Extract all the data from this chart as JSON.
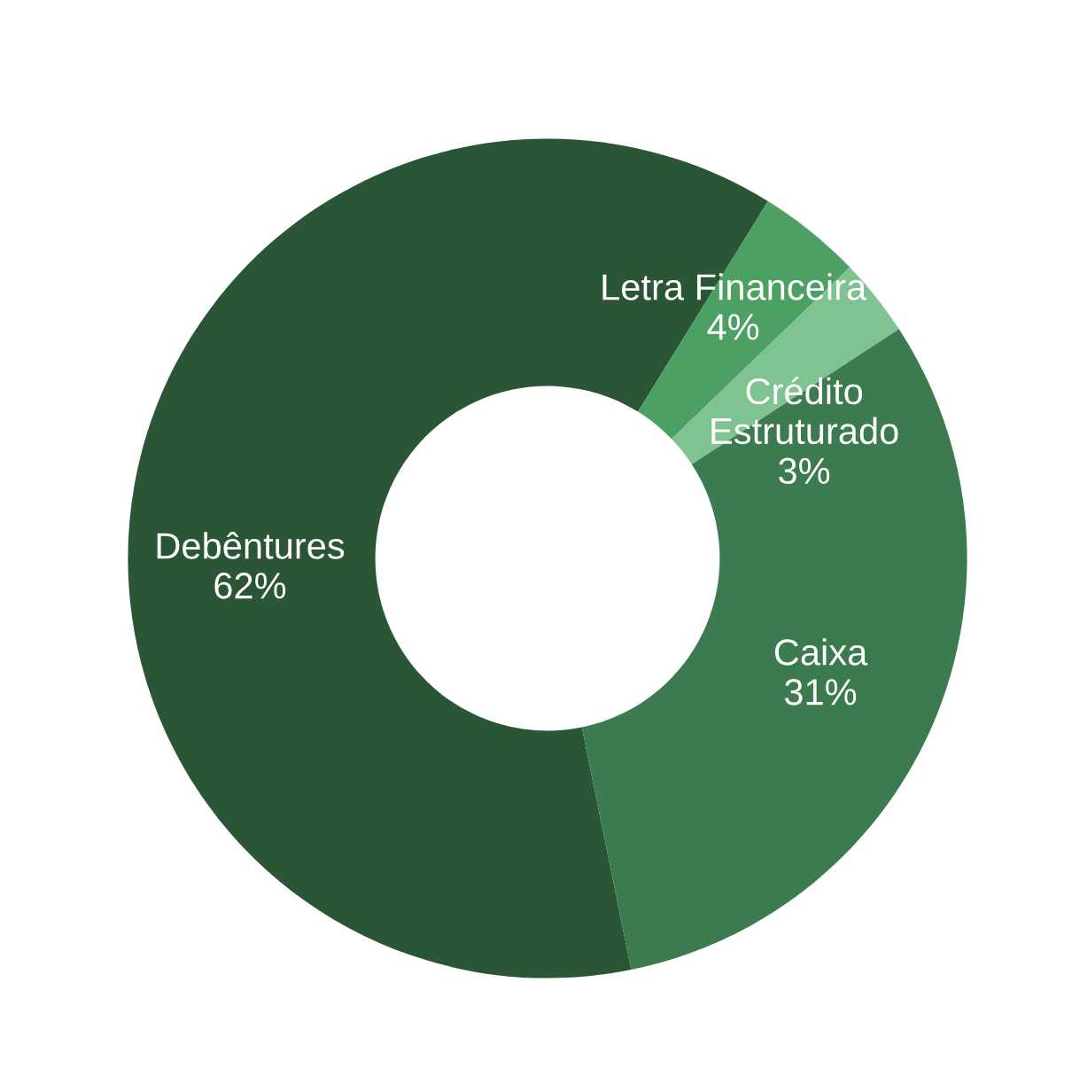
{
  "chart_data": {
    "type": "donut",
    "categories": [
      "Debêntures",
      "Letra Financeira",
      "Crédito\nEstruturado",
      "Caixa"
    ],
    "values": [
      62,
      4,
      3,
      31
    ],
    "value_labels": [
      "62%",
      "4%",
      "3%",
      "31%"
    ],
    "colors": [
      "#2a5636",
      "#4ca064",
      "#7fc393",
      "#3b7b4f"
    ],
    "legend": false
  }
}
